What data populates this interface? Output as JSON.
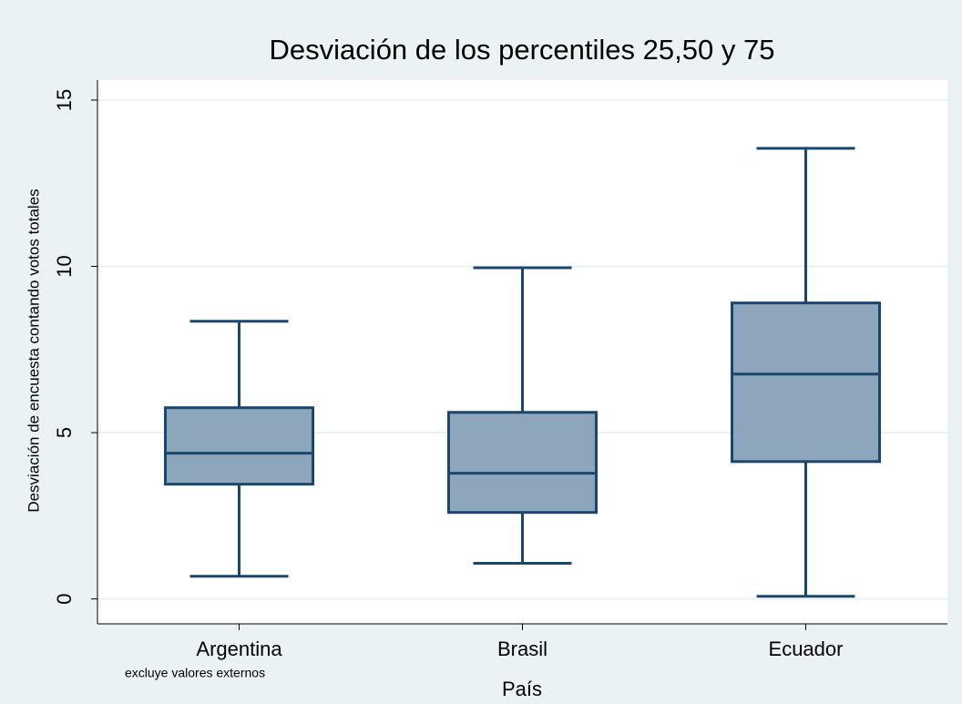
{
  "chart_data": {
    "type": "box",
    "title": "Desviación de los percentiles 25,50 y 75",
    "xlabel": "País",
    "ylabel": "Desviación de encuesta contando votos totales",
    "note": "excluye valores externos",
    "categories": [
      "Argentina",
      "Brasil",
      "Ecuador"
    ],
    "min": [
      0.68,
      1.07,
      0.08
    ],
    "q1": [
      3.45,
      2.6,
      4.13
    ],
    "median": [
      4.38,
      3.78,
      6.76
    ],
    "q3": [
      5.75,
      5.61,
      8.9
    ],
    "max": [
      8.35,
      9.96,
      13.55
    ],
    "color": "#8ea6bb",
    "line_color": "#1a476f",
    "ylim": [
      -0.75,
      15.6
    ],
    "yticks": [
      0,
      5,
      10,
      15
    ],
    "grid": true
  }
}
